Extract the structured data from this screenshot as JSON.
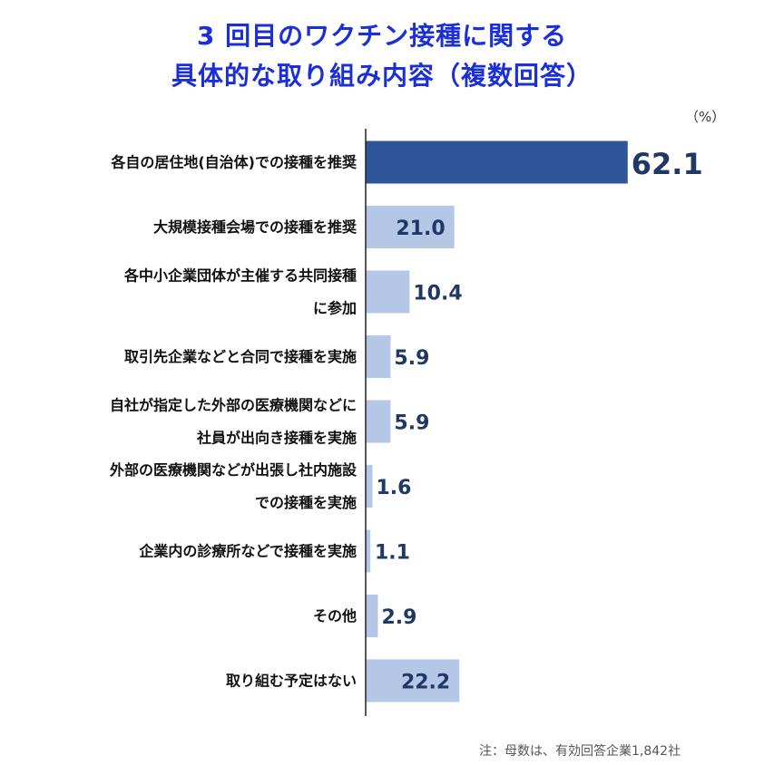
{
  "title_line1": "3 回目のワクチン接種に関する",
  "title_line2": "具体的な取り組み内容（複数回答）",
  "unit": "（%）",
  "note": "注：母数は、有効回答企業1,842社",
  "colors": {
    "title": "#1a2fd8",
    "highlight": "#2e5597",
    "bar": "#b4c7e7",
    "value_text": "#1f3864"
  },
  "chart_data": {
    "type": "bar",
    "orientation": "horizontal",
    "categories": [
      [
        "各自の居住地(自治体)での接種を推奨"
      ],
      [
        "大規模接種会場での接種を推奨"
      ],
      [
        "各中小企業団体が主催する共同接種",
        "に参加"
      ],
      [
        "取引先企業などと合同で接種を実施"
      ],
      [
        "自社が指定した外部の医療機関などに",
        "社員が出向き接種を実施"
      ],
      [
        "外部の医療機関などが出張し社内施設",
        "での接種を実施"
      ],
      [
        "企業内の診療所などで接種を実施"
      ],
      [
        "その他"
      ],
      [
        "取り組む予定はない"
      ]
    ],
    "values": [
      62.1,
      21.0,
      10.4,
      5.9,
      5.9,
      1.6,
      1.1,
      2.9,
      22.2
    ],
    "value_labels": [
      "62.1",
      "21.0",
      "10.4",
      "5.9",
      "5.9",
      "1.6",
      "1.1",
      "2.9",
      "22.2"
    ],
    "highlight_index": 0,
    "xlim": [
      0,
      100
    ]
  }
}
